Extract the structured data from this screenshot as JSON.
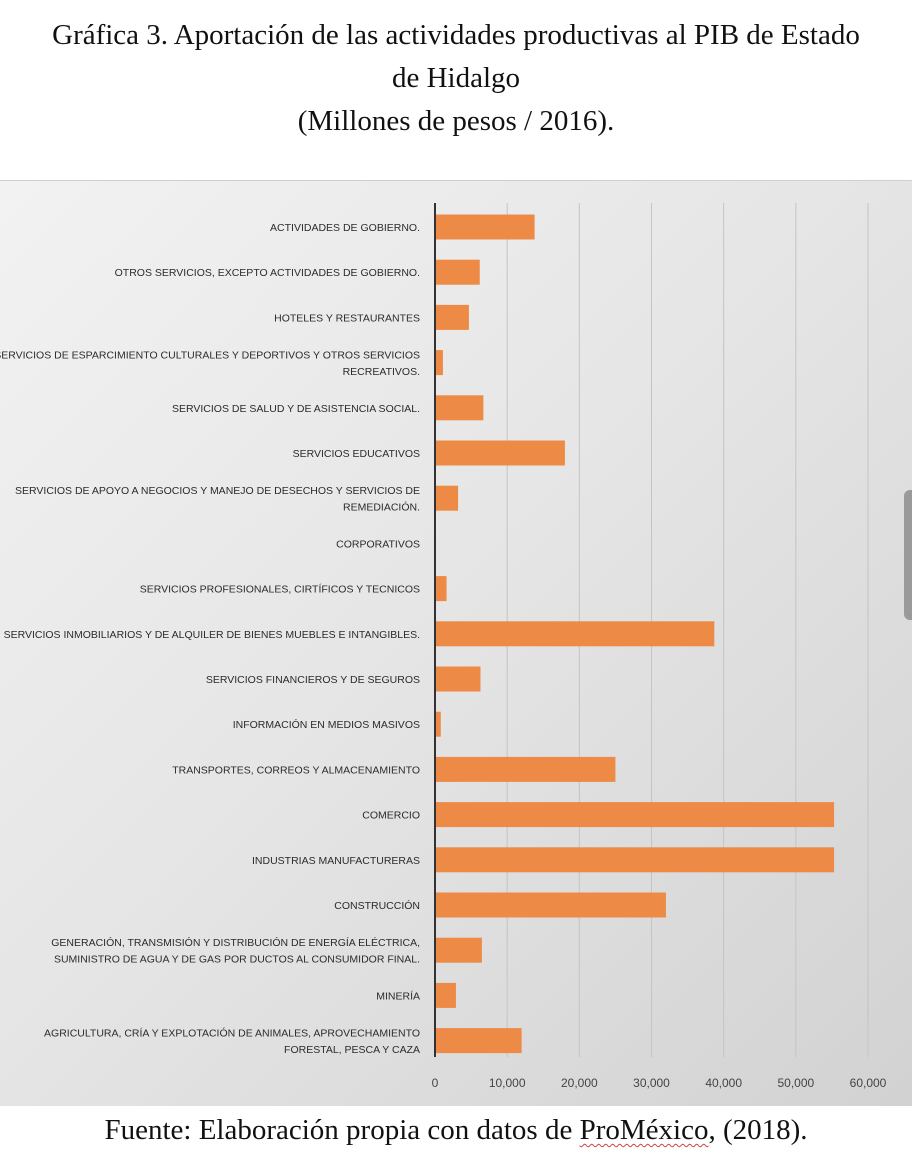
{
  "title": {
    "line1": "Gráfica 3. Aportación de las actividades productivas al PIB de Estado",
    "line2": "de Hidalgo",
    "line3": "(Millones de pesos / 2016)."
  },
  "source": {
    "prefix": "Fuente: Elaboración propia con datos de ",
    "highlight": "ProMéxico",
    "suffix": ", (2018)."
  },
  "chart_data": {
    "type": "bar",
    "orientation": "horizontal",
    "title": "Gráfica 3. Aportación de las actividades productivas al PIB de Estado de Hidalgo (Millones de pesos / 2016).",
    "categories": [
      [
        "ACTIVIDADES DE GOBIERNO."
      ],
      [
        "OTROS SERVICIOS, EXCEPTO ACTIVIDADES DE GOBIERNO."
      ],
      [
        "HOTELES Y RESTAURANTES"
      ],
      [
        "SERVICIOS DE ESPARCIMIENTO CULTURALES Y DEPORTIVOS Y OTROS SERVICIOS",
        "RECREATIVOS."
      ],
      [
        "SERVICIOS DE SALUD Y DE ASISTENCIA SOCIAL."
      ],
      [
        "SERVICIOS EDUCATIVOS"
      ],
      [
        "SERVICIOS DE APOYO A NEGOCIOS Y MANEJO DE DESECHOS Y SERVICIOS DE",
        "REMEDIACIÓN."
      ],
      [
        "CORPORATIVOS"
      ],
      [
        "SERVICIOS PROFESIONALES, CIRTÍFICOS Y TECNICOS"
      ],
      [
        "SERVICIOS INMOBILIARIOS Y DE ALQUILER DE BIENES MUEBLES E INTANGIBLES."
      ],
      [
        "SERVICIOS FINANCIEROS Y DE SEGUROS"
      ],
      [
        "INFORMACIÓN EN MEDIOS MASIVOS"
      ],
      [
        "TRANSPORTES, CORREOS  Y ALMACENAMIENTO"
      ],
      [
        "COMERCIO"
      ],
      [
        "INDUSTRIAS MANUFACTURERAS"
      ],
      [
        "CONSTRUCCIÓN"
      ],
      [
        "GENERACIÓN, TRANSMISIÓN Y DISTRIBUCIÓN DE ENERGÍA ELÉCTRICA,",
        "SUMINISTRO DE AGUA Y DE GAS POR DUCTOS AL CONSUMIDOR FINAL."
      ],
      [
        "MINERÍA"
      ],
      [
        "AGRICULTURA, CRÍA Y EXPLOTACIÓN DE ANIMALES, APROVECHAMIENTO",
        "FORESTAL, PESCA Y CAZA"
      ]
    ],
    "values": [
      13800,
      6200,
      4700,
      1100,
      6700,
      18000,
      3200,
      0,
      1600,
      38700,
      6300,
      800,
      25000,
      55300,
      55300,
      32000,
      6500,
      2900,
      12000
    ],
    "xlim": [
      0,
      60000
    ],
    "ticks": [
      "0",
      "10,000",
      "20,000",
      "30,000",
      "40,000",
      "50,000",
      "60,000"
    ],
    "tick_values": [
      0,
      10000,
      20000,
      30000,
      40000,
      50000,
      60000
    ],
    "grid": true,
    "bar_color": "#ED8A45",
    "xlabel": "",
    "ylabel": ""
  }
}
